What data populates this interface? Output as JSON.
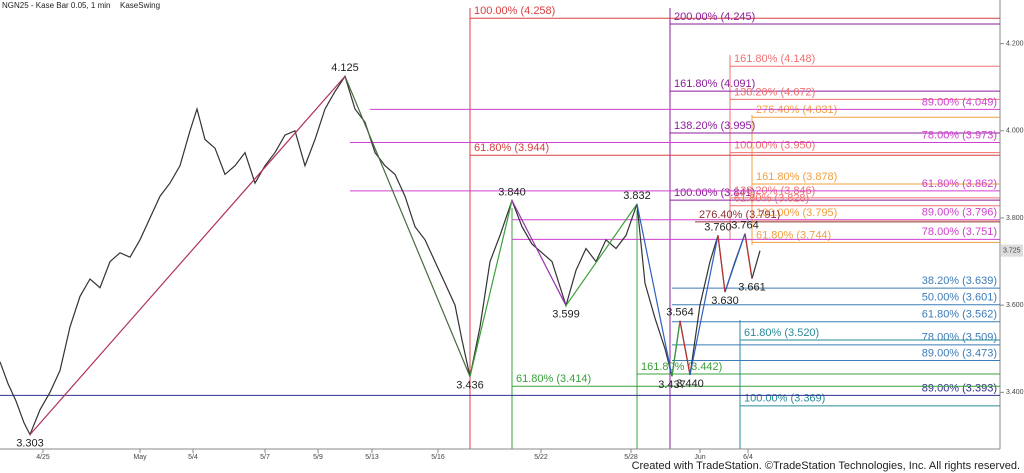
{
  "chart_data": {
    "type": "line",
    "title": "NGN25 - Kase Bar 0.05, 1 min",
    "subtitle": "KaseSwing",
    "footer": "Created with TradeStation. ©TradeStation Technologies, Inc. All rights reserved.",
    "xlim": [
      0,
      1000
    ],
    "xticks": [
      {
        "value": 43,
        "label": "4/25"
      },
      {
        "value": 140,
        "label": "May"
      },
      {
        "value": 193,
        "label": "5/4"
      },
      {
        "value": 265,
        "label": "5/7"
      },
      {
        "value": 318,
        "label": "5/9"
      },
      {
        "value": 372,
        "label": "5/13"
      },
      {
        "value": 438,
        "label": "5/16"
      },
      {
        "value": 541,
        "label": "5/22"
      },
      {
        "value": 631,
        "label": "5/28"
      },
      {
        "value": 700,
        "label": "Jun"
      },
      {
        "value": 748,
        "label": "6/4"
      }
    ],
    "ylim": [
      3.27,
      4.3
    ],
    "yticks": [
      {
        "value": 4.2,
        "label": "4.200"
      },
      {
        "value": 4.0,
        "label": "4.000"
      },
      {
        "value": 3.8,
        "label": "3.800"
      },
      {
        "value": 3.6,
        "label": "3.600"
      },
      {
        "value": 3.4,
        "label": "3.400"
      }
    ],
    "last_price": {
      "value": 3.725,
      "label": "3.725"
    },
    "series": [
      {
        "color": "#333333",
        "x": [
          0,
          8,
          16,
          24,
          30,
          40,
          50,
          60,
          70,
          80,
          90,
          100,
          110,
          120,
          130,
          140,
          150,
          160,
          170,
          180,
          190,
          197,
          205,
          215,
          225,
          235,
          245,
          255,
          265,
          275,
          285,
          295,
          305,
          315,
          325,
          335,
          345,
          355,
          365,
          375,
          385,
          395,
          405,
          415,
          425,
          435,
          445,
          455,
          462,
          470,
          480,
          490,
          500,
          512,
          522,
          532,
          542,
          552,
          566,
          576,
          586,
          596,
          606,
          616,
          626,
          637,
          645,
          655,
          665,
          672,
          680,
          690,
          700,
          710,
          718,
          725,
          735,
          745,
          752,
          760
        ],
        "values": [
          3.47,
          3.42,
          3.38,
          3.33,
          3.303,
          3.36,
          3.4,
          3.45,
          3.55,
          3.62,
          3.66,
          3.64,
          3.7,
          3.72,
          3.71,
          3.75,
          3.8,
          3.85,
          3.88,
          3.92,
          4.0,
          4.05,
          3.98,
          3.96,
          3.9,
          3.92,
          3.95,
          3.88,
          3.92,
          3.95,
          3.99,
          4.0,
          3.92,
          3.98,
          4.05,
          4.09,
          4.125,
          4.05,
          4.02,
          3.95,
          3.92,
          3.9,
          3.85,
          3.78,
          3.75,
          3.7,
          3.65,
          3.6,
          3.52,
          3.436,
          3.55,
          3.7,
          3.76,
          3.84,
          3.78,
          3.74,
          3.72,
          3.7,
          3.599,
          3.68,
          3.73,
          3.7,
          3.75,
          3.73,
          3.76,
          3.832,
          3.65,
          3.57,
          3.5,
          3.437,
          3.564,
          3.44,
          3.6,
          3.7,
          3.76,
          3.63,
          3.7,
          3.764,
          3.661,
          3.725
        ]
      }
    ],
    "swings": {
      "x": [
        30,
        345,
        470,
        512,
        566,
        637,
        672,
        680,
        690,
        718,
        725,
        745,
        752
      ],
      "values": [
        3.303,
        4.125,
        3.436,
        3.84,
        3.599,
        3.832,
        3.437,
        3.564,
        3.44,
        3.76,
        3.63,
        3.764,
        3.661
      ],
      "value_labels": [
        "3.303",
        "4.125",
        "3.436",
        "3.840",
        "3.599",
        "3.832",
        "3.437",
        "3.564",
        "3.440",
        "3.760",
        "3.630",
        "3.764",
        "3.661"
      ],
      "segment_colors": [
        "#b0305a",
        "#4a6a40",
        "#3aa03a",
        "#9a30b0",
        "#3aa03a",
        "#3060c0",
        "#3aa03a",
        "#c03030",
        "#3060c0",
        "#c03030",
        "#3060c0",
        "#c03030"
      ]
    },
    "levels": [
      {
        "value": 4.258,
        "label": "100.00% (4.258)",
        "color": "#d84040",
        "from": 470,
        "label_side": "left"
      },
      {
        "value": 3.944,
        "label": "61.80% (3.944)",
        "color": "#d84040",
        "from": 470,
        "label_side": "left"
      },
      {
        "value": 4.245,
        "label": "200.00% (4.245)",
        "color": "#8c1c9c",
        "from": 670,
        "label_side": "left"
      },
      {
        "value": 4.091,
        "label": "161.80% (4.091)",
        "color": "#8c1c9c",
        "from": 670,
        "label_side": "left"
      },
      {
        "value": 3.995,
        "label": "138.20% (3.995)",
        "color": "#8c1c9c",
        "from": 670,
        "label_side": "left"
      },
      {
        "value": 3.841,
        "label": "100.00% (3.841)",
        "color": "#8c1c9c",
        "from": 670,
        "label_side": "left"
      },
      {
        "value": 4.148,
        "label": "161.80% (4.148)",
        "color": "#f07070",
        "from": 730,
        "label_side": "left"
      },
      {
        "value": 4.072,
        "label": "138.20% (4.072)",
        "color": "#f07070",
        "from": 730,
        "label_side": "left"
      },
      {
        "value": 3.95,
        "label": "100.00% (3.950)",
        "color": "#f07070",
        "from": 730,
        "label_side": "left"
      },
      {
        "value": 3.846,
        "label": "138.20% (3.846)",
        "color": "#f07070",
        "from": 730,
        "label_side": "left"
      },
      {
        "value": 3.828,
        "label": "61.80% (3.828)",
        "color": "#f07070",
        "from": 730,
        "label_side": "left"
      },
      {
        "value": 4.031,
        "label": "276.40% (4.031)",
        "color": "#f0a040",
        "from": 752,
        "label_side": "left"
      },
      {
        "value": 3.878,
        "label": "161.80% (3.878)",
        "color": "#f0a040",
        "from": 752,
        "label_side": "left"
      },
      {
        "value": 3.795,
        "label": "100.00% (3.795)",
        "color": "#f0a040",
        "from": 752,
        "label_side": "left"
      },
      {
        "value": 3.744,
        "label": "61.80% (3.744)",
        "color": "#f0a040",
        "from": 752,
        "label_side": "left"
      },
      {
        "value": 3.791,
        "label": "276.40% (3.791)",
        "color": "#903030",
        "from": 695,
        "label_side": "left"
      },
      {
        "value": 4.049,
        "label": "89.00% (4.049)",
        "color": "#d040d0",
        "from": 370,
        "label_side": "right"
      },
      {
        "value": 3.973,
        "label": "78.00% (3.973)",
        "color": "#d040d0",
        "from": 350,
        "label_side": "right"
      },
      {
        "value": 3.862,
        "label": "61.80% (3.862)",
        "color": "#d040d0",
        "from": 350,
        "label_side": "right"
      },
      {
        "value": 3.796,
        "label": "89.00% (3.796)",
        "color": "#d040d0",
        "from": 512,
        "label_side": "right"
      },
      {
        "value": 3.751,
        "label": "78.00% (3.751)",
        "color": "#d040d0",
        "from": 512,
        "label_side": "right"
      },
      {
        "value": 3.639,
        "label": "38.20% (3.639)",
        "color": "#3c7cb8",
        "from": 672,
        "label_side": "right"
      },
      {
        "value": 3.601,
        "label": "50.00% (3.601)",
        "color": "#3c7cb8",
        "from": 672,
        "label_side": "right"
      },
      {
        "value": 3.562,
        "label": "61.80% (3.562)",
        "color": "#3c7cb8",
        "from": 672,
        "label_side": "right"
      },
      {
        "value": 3.509,
        "label": "78.00% (3.509)",
        "color": "#3c7cb8",
        "from": 672,
        "label_side": "right"
      },
      {
        "value": 3.473,
        "label": "89.00% (3.473)",
        "color": "#3c7cb8",
        "from": 672,
        "label_side": "right"
      },
      {
        "value": 3.52,
        "label": "61.80% (3.520)",
        "color": "#2a8a9a",
        "from": 740,
        "label_side": "left"
      },
      {
        "value": 3.369,
        "label": "100.00% (3.369)",
        "color": "#2a8a9a",
        "from": 740,
        "label_side": "left"
      },
      {
        "value": 3.393,
        "label": "89.00% (3.393)",
        "color": "#303090",
        "from": 0,
        "label_side": "right"
      },
      {
        "value": 3.414,
        "label": "61.80% (3.414)",
        "color": "#3aa03a",
        "from": 512,
        "label_side": "left"
      },
      {
        "value": 3.442,
        "label": "161.80% (3.442)",
        "color": "#3aa03a",
        "from": 637,
        "label_side": "left"
      }
    ]
  }
}
